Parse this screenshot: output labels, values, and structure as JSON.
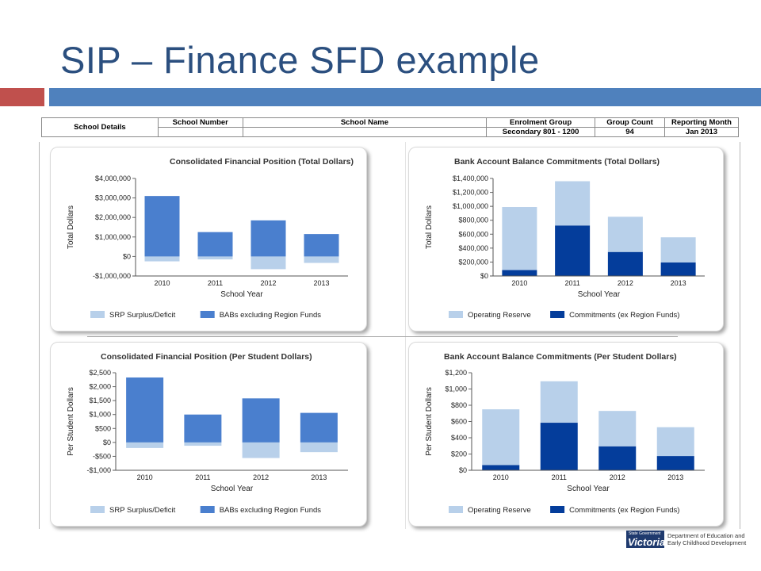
{
  "slide": {
    "title": "SIP – Finance SFD example"
  },
  "details": {
    "label": "School Details",
    "headers": [
      "School Number",
      "School Name",
      "Enrolment Group",
      "Group Count",
      "Reporting Month"
    ],
    "values": [
      "",
      "",
      "Secondary 801 - 1200",
      "94",
      "Jan 2013"
    ]
  },
  "colors": {
    "light_blue": "#b8d0ea",
    "mid_blue": "#4a7fce",
    "dark_blue": "#043d9b"
  },
  "chart_data": [
    {
      "type": "bar",
      "stacking": "diverging",
      "title": "Consolidated Financial Position (Total Dollars)",
      "xlabel": "School Year",
      "ylabel": "Total Dollars",
      "categories": [
        "2010",
        "2011",
        "2012",
        "2013"
      ],
      "ylim": [
        -1000000,
        4000000
      ],
      "yticks": [
        -1000000,
        0,
        1000000,
        2000000,
        3000000,
        4000000
      ],
      "ytick_labels": [
        "-$1,000,000",
        "$0",
        "$1,000,000",
        "$2,000,000",
        "$3,000,000",
        "$4,000,000"
      ],
      "series": [
        {
          "name": "SRP Surplus/Deficit",
          "color": "light_blue",
          "values": [
            -250000,
            -150000,
            -650000,
            -330000
          ]
        },
        {
          "name": "BABs excluding Region Funds",
          "color": "mid_blue",
          "values": [
            3100000,
            1250000,
            1850000,
            1150000
          ]
        }
      ],
      "grid": false,
      "legend": "bottom"
    },
    {
      "type": "bar",
      "stacking": "stacked",
      "title": "Bank Account Balance Commitments (Total Dollars)",
      "xlabel": "School Year",
      "ylabel": "Total Dollars",
      "categories": [
        "2010",
        "2011",
        "2012",
        "2013"
      ],
      "ylim": [
        0,
        1400000
      ],
      "yticks": [
        0,
        200000,
        400000,
        600000,
        800000,
        1000000,
        1200000,
        1400000
      ],
      "ytick_labels": [
        "$0",
        "$200,000",
        "$400,000",
        "$600,000",
        "$800,000",
        "$1,000,000",
        "$1,200,000",
        "$1,400,000"
      ],
      "series": [
        {
          "name": "Commitments (ex Region Funds)",
          "color": "dark_blue",
          "values": [
            85000,
            725000,
            345000,
            195000
          ]
        },
        {
          "name": "Operating Reserve",
          "color": "light_blue",
          "values": [
            905000,
            635000,
            505000,
            360000
          ]
        }
      ],
      "legend_order": [
        "Operating Reserve",
        "Commitments (ex Region Funds)"
      ],
      "grid": false,
      "legend": "bottom"
    },
    {
      "type": "bar",
      "stacking": "diverging",
      "title": "Consolidated Financial Position (Per Student Dollars)",
      "xlabel": "School Year",
      "ylabel": "Per Student Dollars",
      "categories": [
        "2010",
        "2011",
        "2012",
        "2013"
      ],
      "ylim": [
        -1000,
        2500
      ],
      "yticks": [
        -1000,
        -500,
        0,
        500,
        1000,
        1500,
        2000,
        2500
      ],
      "ytick_labels": [
        "-$1,000",
        "-$500",
        "$0",
        "$500",
        "$1,000",
        "$1,500",
        "$2,000",
        "$2,500"
      ],
      "series": [
        {
          "name": "SRP Surplus/Deficit",
          "color": "light_blue",
          "values": [
            -200,
            -120,
            -560,
            -350
          ]
        },
        {
          "name": "BABs excluding Region Funds",
          "color": "mid_blue",
          "values": [
            2330,
            1000,
            1580,
            1060
          ]
        }
      ],
      "grid": false,
      "legend": "bottom"
    },
    {
      "type": "bar",
      "stacking": "stacked",
      "title": "Bank Account Balance Commitments (Per Student Dollars)",
      "xlabel": "School Year",
      "ylabel": "Per Student Dollars",
      "categories": [
        "2010",
        "2011",
        "2012",
        "2013"
      ],
      "ylim": [
        0,
        1200
      ],
      "yticks": [
        0,
        200,
        400,
        600,
        800,
        1000,
        1200
      ],
      "ytick_labels": [
        "$0",
        "$200",
        "$400",
        "$600",
        "$800",
        "$1,000",
        "$1,200"
      ],
      "series": [
        {
          "name": "Commitments (ex Region Funds)",
          "color": "dark_blue",
          "values": [
            65,
            585,
            295,
            175
          ]
        },
        {
          "name": "Operating Reserve",
          "color": "light_blue",
          "values": [
            685,
            510,
            435,
            355
          ]
        }
      ],
      "legend_order": [
        "Operating Reserve",
        "Commitments (ex Region Funds)"
      ],
      "grid": false,
      "legend": "bottom"
    }
  ],
  "footer": {
    "logo_small": "State Government",
    "logo_big": "Victoria",
    "dept_line1": "Department of Education and",
    "dept_line2": "Early Childhood Development"
  }
}
